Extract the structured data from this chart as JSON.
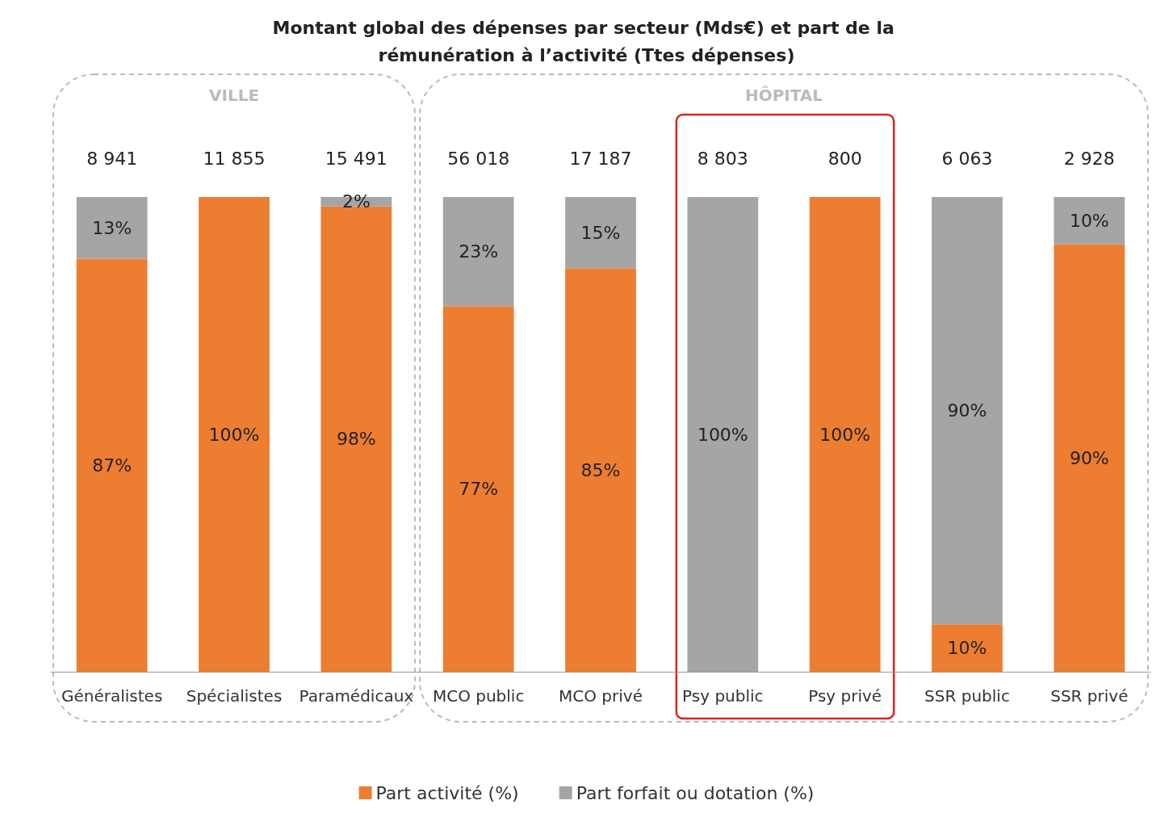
{
  "chart_data": {
    "type": "bar",
    "title": "Montant global des dépenses par secteur (Mds€) et part de la rémunération à l’activité (Ttes dépenses)",
    "categories": [
      "Généralistes",
      "Spécialistes",
      "Paramédicaux",
      "MCO public",
      "MCO privé",
      "Psy public",
      "Psy privé",
      "SSR public",
      "SSR privé"
    ],
    "stacked": true,
    "series": [
      {
        "name": "Part activité (%)",
        "color": "#ed7d31",
        "values": [
          87,
          100,
          98,
          77,
          85,
          0,
          100,
          10,
          90
        ],
        "value_labels": [
          "87%",
          "100%",
          "98%",
          "77%",
          "85%",
          null,
          "100%",
          "10%",
          "90%"
        ]
      },
      {
        "name": "Part forfait ou dotation (%)",
        "color": "#a5a5a5",
        "values": [
          13,
          0,
          2,
          23,
          15,
          100,
          0,
          90,
          10
        ],
        "value_labels": [
          "13%",
          null,
          "2%",
          "23%",
          "15%",
          "100%",
          null,
          "90%",
          "10%"
        ]
      }
    ],
    "annotations": [
      "VILLE",
      "HÔPITAL",
      "8 941",
      "11 855",
      "15 491",
      "56 018",
      "17 187",
      "8 803",
      "800",
      "6 063",
      "2 928"
    ],
    "legend": "bottom"
  }
}
